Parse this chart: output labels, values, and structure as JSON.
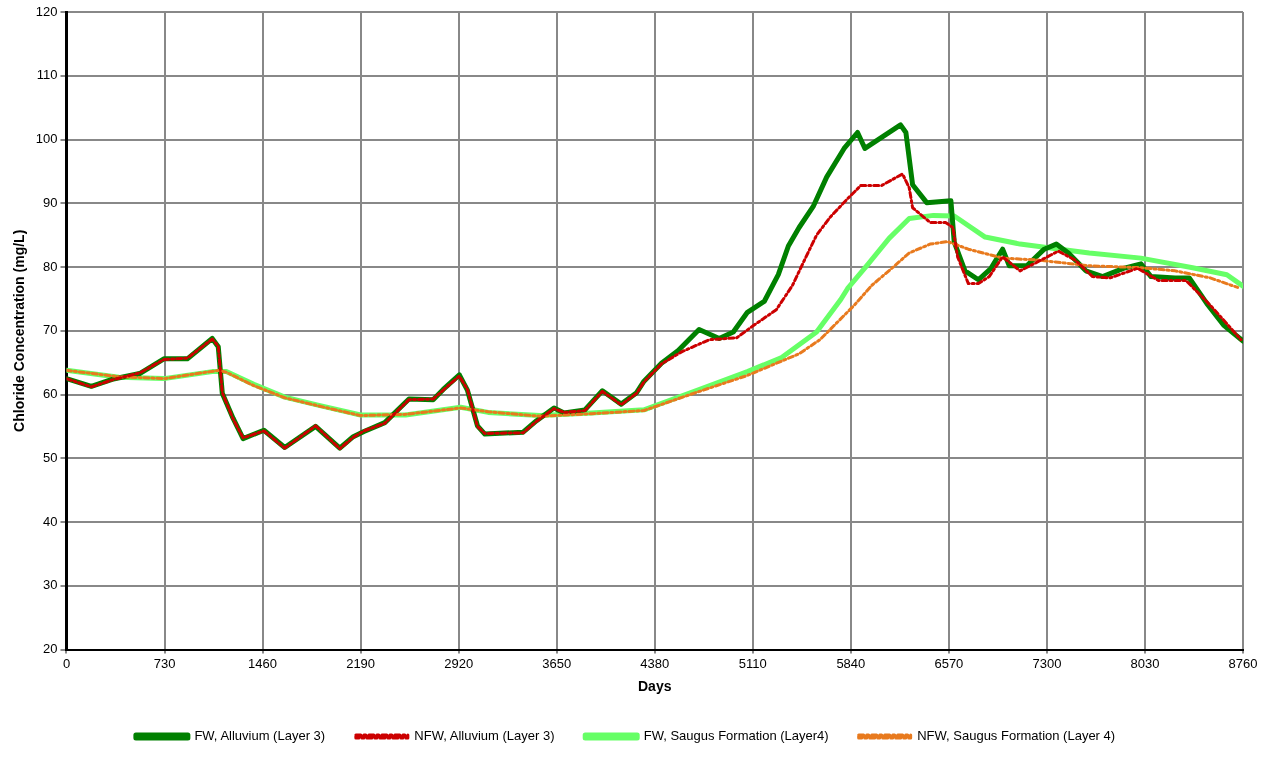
{
  "chart_data": {
    "type": "line",
    "xlabel": "Days",
    "ylabel": "Chloride Concentration (mg/L)",
    "xlim": [
      0,
      8760
    ],
    "xticks": [
      0,
      730,
      1460,
      2190,
      2920,
      3650,
      4380,
      5110,
      5840,
      6570,
      7300,
      8030,
      8760
    ],
    "ylim": [
      20,
      120
    ],
    "yticks": [
      20,
      30,
      40,
      50,
      60,
      70,
      80,
      90,
      100,
      110,
      120
    ],
    "grid": true,
    "legend": "bottom",
    "marker": "none",
    "series": [
      {
        "name": "FW, Alluvium (Layer 3)",
        "color": "#008000",
        "line_style": "solid",
        "x": [
          0,
          185,
          340,
          545,
          725,
          900,
          1085,
          1130,
          1160,
          1240,
          1315,
          1470,
          1625,
          1855,
          2035,
          2135,
          2215,
          2370,
          2550,
          2730,
          2805,
          2925,
          2985,
          3060,
          3115,
          3400,
          3500,
          3630,
          3705,
          3860,
          3990,
          4130,
          4245,
          4300,
          4430,
          4555,
          4710,
          4860,
          4965,
          5070,
          5195,
          5300,
          5375,
          5455,
          5560,
          5660,
          5790,
          5890,
          5945,
          6210,
          6250,
          6300,
          6405,
          6585,
          6610,
          6690,
          6790,
          6880,
          6970,
          7020,
          7150,
          7280,
          7370,
          7460,
          7590,
          7715,
          7870,
          8000,
          8075,
          8255,
          8360,
          8490,
          8615,
          8760
        ],
        "values": [
          62.5,
          61.3,
          62.4,
          63.3,
          65.6,
          65.6,
          68.8,
          67.5,
          60.2,
          56.3,
          53.1,
          54.4,
          51.7,
          55.0,
          51.6,
          53.4,
          54.2,
          55.6,
          59.3,
          59.2,
          60.8,
          63.1,
          60.7,
          55.1,
          53.8,
          54.1,
          55.9,
          57.9,
          57.1,
          57.6,
          60.6,
          58.5,
          60.3,
          62.1,
          64.9,
          66.9,
          70.2,
          68.8,
          69.8,
          72.9,
          74.6,
          78.8,
          83.3,
          86.2,
          89.5,
          94.1,
          98.6,
          101.1,
          98.6,
          102.3,
          101.1,
          92.9,
          90.1,
          90.4,
          83.9,
          79.4,
          78.0,
          79.7,
          82.8,
          80.2,
          80.2,
          82.8,
          83.6,
          82.2,
          79.4,
          78.5,
          79.8,
          80.5,
          78.5,
          78.3,
          78.3,
          74.3,
          70.9,
          68.4
        ]
      },
      {
        "name": "NFW, Alluvium (Layer 3)",
        "color": "#cc0000",
        "line_style": "dashed",
        "x": [
          0,
          185,
          340,
          545,
          725,
          900,
          1085,
          1130,
          1160,
          1240,
          1315,
          1470,
          1625,
          1855,
          2035,
          2135,
          2215,
          2370,
          2550,
          2730,
          2805,
          2925,
          2985,
          3060,
          3115,
          3400,
          3500,
          3630,
          3705,
          3860,
          3990,
          4130,
          4245,
          4300,
          4430,
          4580,
          4785,
          4990,
          5120,
          5285,
          5405,
          5495,
          5585,
          5685,
          5815,
          5915,
          6070,
          6225,
          6275,
          6300,
          6430,
          6545,
          6600,
          6635,
          6715,
          6790,
          6870,
          6970,
          7100,
          7230,
          7385,
          7510,
          7640,
          7770,
          7975,
          8130,
          8335,
          8490,
          8615,
          8745
        ],
        "values": [
          62.5,
          61.2,
          62.3,
          63.4,
          65.5,
          65.7,
          68.7,
          67.6,
          60.3,
          56.2,
          53.2,
          54.3,
          51.6,
          55.1,
          51.5,
          53.3,
          54.3,
          55.5,
          59.2,
          59.3,
          60.7,
          62.9,
          60.8,
          55.0,
          53.9,
          54.0,
          55.8,
          57.8,
          57.2,
          57.5,
          60.5,
          58.4,
          60.2,
          62.0,
          64.8,
          66.7,
          68.6,
          68.9,
          70.9,
          73.3,
          77.1,
          81.1,
          85.0,
          87.8,
          90.7,
          92.8,
          92.8,
          94.6,
          92.4,
          89.3,
          87.0,
          87.0,
          86.2,
          81.6,
          77.4,
          77.4,
          78.5,
          81.6,
          79.4,
          80.8,
          82.5,
          81.1,
          78.5,
          78.3,
          79.8,
          77.9,
          77.9,
          74.6,
          71.7,
          68.6
        ]
      },
      {
        "name": "FW, Saugus Formation (Layer4)",
        "color": "#66ff66",
        "line_style": "solid",
        "x": [
          0,
          390,
          725,
          1085,
          1190,
          1395,
          1625,
          1880,
          2190,
          2525,
          2935,
          3140,
          3525,
          3910,
          4300,
          4685,
          5070,
          5325,
          5585,
          5765,
          5815,
          5970,
          6125,
          6275,
          6455,
          6610,
          6840,
          7100,
          7355,
          7615,
          8000,
          8385,
          8640,
          8760
        ],
        "values": [
          63.8,
          62.7,
          62.5,
          63.6,
          63.6,
          61.6,
          59.6,
          58.3,
          56.8,
          56.8,
          58.0,
          57.2,
          56.7,
          57.1,
          57.6,
          60.6,
          63.6,
          65.8,
          69.8,
          74.9,
          76.6,
          80.5,
          84.5,
          87.6,
          88.1,
          88.0,
          84.7,
          83.6,
          82.9,
          82.2,
          81.4,
          79.9,
          78.8,
          77.0
        ]
      },
      {
        "name": "NFW, Saugus Formation (Layer 4)",
        "color": "#e87a1e",
        "line_style": "dashed",
        "x": [
          0,
          390,
          725,
          1135,
          1190,
          1395,
          1625,
          1880,
          2190,
          2525,
          2935,
          3140,
          3525,
          3910,
          4300,
          4685,
          5070,
          5455,
          5610,
          5865,
          5995,
          6150,
          6275,
          6430,
          6560,
          6715,
          6970,
          7230,
          7615,
          8000,
          8255,
          8515,
          8720
        ],
        "values": [
          63.8,
          62.8,
          62.5,
          63.8,
          63.5,
          61.4,
          59.5,
          58.2,
          56.7,
          56.9,
          57.9,
          57.3,
          56.6,
          57.0,
          57.5,
          60.3,
          63.0,
          66.4,
          68.6,
          74.0,
          77.1,
          79.9,
          82.2,
          83.6,
          84.0,
          82.8,
          81.4,
          81.1,
          80.2,
          79.9,
          79.4,
          78.3,
          76.8
        ]
      }
    ]
  }
}
